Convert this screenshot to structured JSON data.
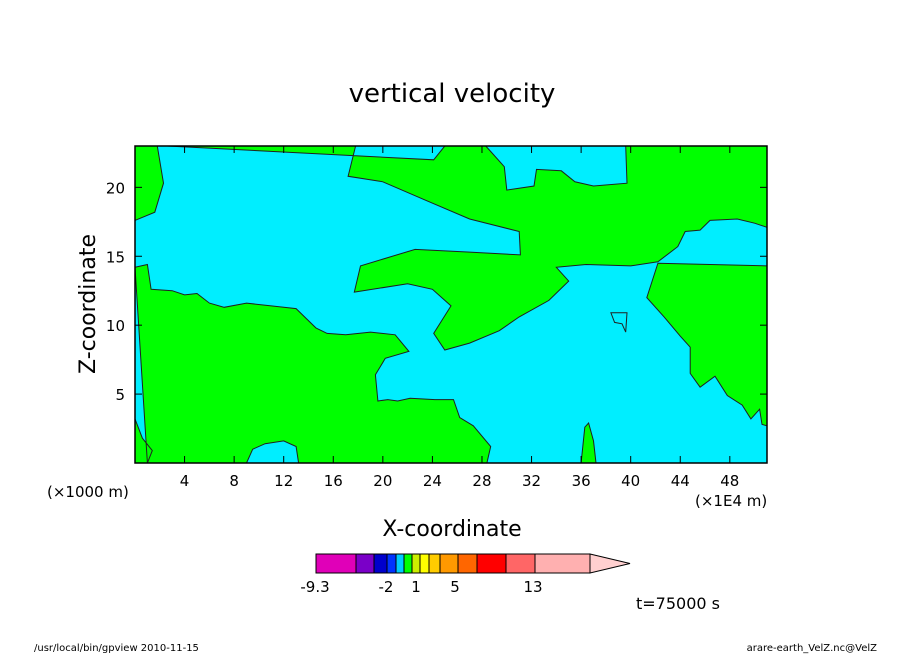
{
  "chart_data": {
    "type": "heatmap",
    "title": "vertical velocity",
    "xlabel": "X-coordinate",
    "ylabel": "Z-coordinate",
    "x_unit_left": "(×1000 m)",
    "x_unit_right": "(×1E4 m)",
    "xlim": [
      0,
      51
    ],
    "ylim": [
      0,
      23
    ],
    "x_ticks": [
      "4",
      "8",
      "12",
      "16",
      "20",
      "24",
      "28",
      "32",
      "36",
      "40",
      "44",
      "48"
    ],
    "x_tick_values": [
      4,
      8,
      12,
      16,
      20,
      24,
      28,
      32,
      36,
      40,
      44,
      48
    ],
    "y_ticks": [
      "5",
      "10",
      "15",
      "20"
    ],
    "y_tick_values": [
      5,
      10,
      15,
      20
    ],
    "fill_colors": {
      "positive": "#00ff00",
      "negative": "#00eeff",
      "contour": "#202020"
    },
    "regions": [
      {
        "name": "updraft-upper-left",
        "sign": "positive",
        "points": [
          [
            0,
            23
          ],
          [
            1.8,
            23
          ],
          [
            2.3,
            20.3
          ],
          [
            1.6,
            18.2
          ],
          [
            0,
            17.6
          ]
        ]
      },
      {
        "name": "updraft-upper-band",
        "sign": "positive",
        "points": [
          [
            2.6,
            23
          ],
          [
            17.8,
            23
          ],
          [
            17.2,
            20.8
          ],
          [
            20,
            20.4
          ],
          [
            23.6,
            19
          ],
          [
            27,
            17.7
          ],
          [
            31,
            16.8
          ],
          [
            31.1,
            15.1
          ],
          [
            27,
            15.3
          ],
          [
            22.6,
            15.5
          ],
          [
            20.4,
            14.9
          ],
          [
            18.2,
            14.3
          ],
          [
            17.7,
            12.4
          ],
          [
            22,
            13
          ],
          [
            24,
            12.6
          ],
          [
            25.5,
            11.4
          ],
          [
            24.1,
            9.4
          ],
          [
            25,
            8.2
          ],
          [
            27,
            8.7
          ],
          [
            29.4,
            9.6
          ],
          [
            31,
            10.6
          ],
          [
            33.4,
            11.8
          ],
          [
            35,
            13.2
          ],
          [
            34,
            14.2
          ],
          [
            36.4,
            14.4
          ],
          [
            40,
            14.3
          ],
          [
            42.2,
            14.6
          ],
          [
            43.8,
            15.7
          ],
          [
            44.4,
            16.8
          ],
          [
            45.6,
            16.9
          ],
          [
            46.4,
            17.6
          ],
          [
            48.6,
            17.7
          ],
          [
            50,
            17.4
          ],
          [
            51,
            17.1
          ],
          [
            51,
            23
          ],
          [
            39.6,
            23
          ],
          [
            39.7,
            20.3
          ],
          [
            37,
            20.1
          ],
          [
            35.5,
            20.4
          ],
          [
            34.4,
            21.2
          ],
          [
            32.4,
            21.3
          ],
          [
            32.2,
            20.1
          ],
          [
            30,
            19.8
          ],
          [
            29.8,
            21.5
          ],
          [
            28.7,
            22.6
          ],
          [
            28.3,
            23
          ],
          [
            25,
            23
          ],
          [
            24.1,
            22
          ]
        ]
      },
      {
        "name": "updraft-right",
        "sign": "positive",
        "points": [
          [
            51,
            14.3
          ],
          [
            42.2,
            14.5
          ],
          [
            41.3,
            12
          ],
          [
            42.7,
            10.6
          ],
          [
            44,
            9.2
          ],
          [
            44.8,
            8.4
          ],
          [
            44.8,
            6.5
          ],
          [
            45.6,
            5.5
          ],
          [
            46.8,
            6.3
          ],
          [
            47.8,
            4.9
          ],
          [
            49,
            4.2
          ],
          [
            49.7,
            3.2
          ],
          [
            50.4,
            3.9
          ],
          [
            50.6,
            2.8
          ],
          [
            51,
            2.7
          ]
        ]
      },
      {
        "name": "updraft-lower-left",
        "sign": "positive",
        "points": [
          [
            0,
            14.2
          ],
          [
            1,
            14.4
          ],
          [
            1.3,
            12.6
          ],
          [
            3,
            12.5
          ],
          [
            4,
            12.2
          ],
          [
            5,
            12.3
          ],
          [
            6,
            11.6
          ],
          [
            7.2,
            11.3
          ],
          [
            9,
            11.6
          ],
          [
            11,
            11.4
          ],
          [
            13,
            11.2
          ],
          [
            14.6,
            9.8
          ],
          [
            15.5,
            9.4
          ],
          [
            17,
            9.3
          ],
          [
            19,
            9.5
          ],
          [
            21,
            9.3
          ],
          [
            22.1,
            8.1
          ],
          [
            20.2,
            7.6
          ],
          [
            19.4,
            6.4
          ],
          [
            19.6,
            4.5
          ],
          [
            20.4,
            4.6
          ],
          [
            21.2,
            4.5
          ],
          [
            22.2,
            4.7
          ],
          [
            24.2,
            4.6
          ],
          [
            25.7,
            4.6
          ],
          [
            26.2,
            3.3
          ],
          [
            27.3,
            2.7
          ],
          [
            28.7,
            1.2
          ],
          [
            28.4,
            0
          ],
          [
            0,
            0
          ],
          [
            0,
            3.2
          ],
          [
            0.6,
            1.8
          ],
          [
            1.4,
            0.9
          ],
          [
            1,
            0
          ]
        ]
      },
      {
        "name": "updraft-bottom-center",
        "sign": "positive",
        "points": [
          [
            36,
            0
          ],
          [
            37.2,
            0
          ],
          [
            37,
            1.6
          ],
          [
            36.6,
            2.9
          ],
          [
            36.3,
            2.6
          ]
        ]
      },
      {
        "name": "downdraft-left-bottom",
        "sign": "negative",
        "points": [
          [
            9,
            0
          ],
          [
            9.5,
            1
          ],
          [
            10.5,
            1.4
          ],
          [
            12,
            1.6
          ],
          [
            13,
            1.2
          ],
          [
            13.2,
            0
          ]
        ]
      },
      {
        "name": "downdraft-strip",
        "sign": "negative",
        "points": [
          [
            38.4,
            10.9
          ],
          [
            39.7,
            10.9
          ],
          [
            39.6,
            9.5
          ],
          [
            39.3,
            10.1
          ],
          [
            38.7,
            10.2
          ]
        ]
      }
    ]
  },
  "colorbar": {
    "colors": [
      "#e000b8",
      "#7a00c8",
      "#0000cc",
      "#0033ff",
      "#00ccff",
      "#00ff00",
      "#ccee00",
      "#ffff00",
      "#ffcc00",
      "#ff9900",
      "#ff6600",
      "#ff0000",
      "#ff6666",
      "#ffb0b0",
      "#ffd0d0"
    ],
    "labels": [
      "-9.3",
      "-2",
      "1",
      "5",
      "13"
    ]
  },
  "footer": {
    "time": "t=75000 s",
    "left": "/usr/local/bin/gpview  2010-11-15",
    "right": "arare-earth_VelZ.nc@VelZ"
  }
}
